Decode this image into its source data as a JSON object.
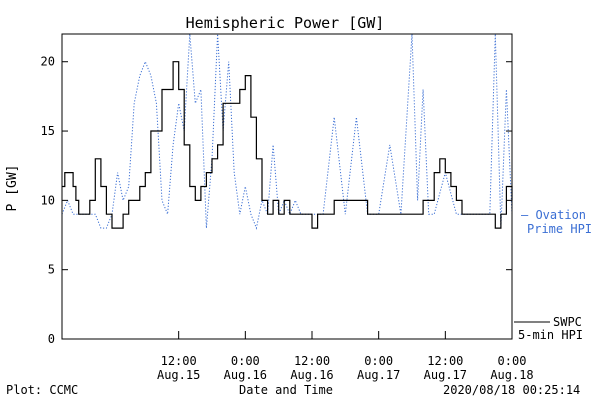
{
  "chart_data": {
    "type": "line",
    "title": "Hemispheric Power [GW]",
    "ylabel": "P [GW]",
    "xlabel": "Date and Time",
    "ylim": [
      0,
      22
    ],
    "x_start": "2020-08-14 15:00",
    "x_end": "2020-08-18 00:00",
    "yticks": [
      0,
      5,
      10,
      15,
      20
    ],
    "xticks": [
      {
        "t": "2020-08-15 12:00",
        "time": "12:00",
        "date": "Aug.15"
      },
      {
        "t": "2020-08-16 00:00",
        "time": "0:00",
        "date": "Aug.16"
      },
      {
        "t": "2020-08-16 12:00",
        "time": "12:00",
        "date": "Aug.16"
      },
      {
        "t": "2020-08-17 00:00",
        "time": "0:00",
        "date": "Aug.17"
      },
      {
        "t": "2020-08-17 12:00",
        "time": "12:00",
        "date": "Aug.17"
      },
      {
        "t": "2020-08-18 00:00",
        "time": "0:00",
        "date": "Aug.18"
      }
    ],
    "grid": false,
    "legend_placement": "right",
    "series": [
      {
        "name": "SWPC 5-min HPI",
        "color": "#000000",
        "style": "solid",
        "x": [
          "2020-08-14 15:00",
          "2020-08-14 15:30",
          "2020-08-14 17:00",
          "2020-08-14 17:30",
          "2020-08-14 18:00",
          "2020-08-14 19:00",
          "2020-08-14 20:00",
          "2020-08-14 21:00",
          "2020-08-14 22:00",
          "2020-08-14 23:00",
          "2020-08-15 00:00",
          "2020-08-15 01:00",
          "2020-08-15 02:00",
          "2020-08-15 03:00",
          "2020-08-15 04:00",
          "2020-08-15 05:00",
          "2020-08-15 06:00",
          "2020-08-15 07:00",
          "2020-08-15 09:00",
          "2020-08-15 11:00",
          "2020-08-15 12:00",
          "2020-08-15 13:00",
          "2020-08-15 14:00",
          "2020-08-15 15:00",
          "2020-08-15 16:00",
          "2020-08-15 17:00",
          "2020-08-15 18:00",
          "2020-08-15 19:00",
          "2020-08-15 20:00",
          "2020-08-15 21:00",
          "2020-08-15 22:00",
          "2020-08-15 23:00",
          "2020-08-16 00:00",
          "2020-08-16 01:00",
          "2020-08-16 02:00",
          "2020-08-16 03:00",
          "2020-08-16 04:00",
          "2020-08-16 05:00",
          "2020-08-16 06:00",
          "2020-08-16 07:00",
          "2020-08-16 08:00",
          "2020-08-16 09:00",
          "2020-08-16 10:00",
          "2020-08-16 11:00",
          "2020-08-16 12:00",
          "2020-08-16 13:00",
          "2020-08-16 14:00",
          "2020-08-16 16:00",
          "2020-08-16 18:00",
          "2020-08-16 20:00",
          "2020-08-16 22:00",
          "2020-08-17 00:00",
          "2020-08-17 02:00",
          "2020-08-17 04:00",
          "2020-08-17 06:00",
          "2020-08-17 08:00",
          "2020-08-17 10:00",
          "2020-08-17 11:00",
          "2020-08-17 12:00",
          "2020-08-17 13:00",
          "2020-08-17 14:00",
          "2020-08-17 15:00",
          "2020-08-17 16:00",
          "2020-08-17 18:00",
          "2020-08-17 20:00",
          "2020-08-17 21:00",
          "2020-08-17 22:00",
          "2020-08-17 23:00",
          "2020-08-18 00:00"
        ],
        "values": [
          11,
          12,
          11,
          10,
          9,
          9,
          10,
          13,
          11,
          9,
          8,
          8,
          9,
          10,
          10,
          11,
          12,
          15,
          18,
          20,
          18,
          14,
          11,
          10,
          11,
          12,
          13,
          14,
          17,
          17,
          17,
          18,
          19,
          16,
          13,
          10,
          9,
          10,
          9,
          10,
          9,
          9,
          9,
          9,
          8,
          9,
          9,
          10,
          10,
          10,
          9,
          9,
          9,
          9,
          9,
          10,
          12,
          13,
          12,
          11,
          10,
          9,
          9,
          9,
          9,
          8,
          9,
          11,
          10
        ]
      },
      {
        "name": "Ovation Prime HPI",
        "color": "#3b6fd4",
        "style": "dotted",
        "x": [
          "2020-08-14 15:00",
          "2020-08-14 16:00",
          "2020-08-14 17:00",
          "2020-08-14 18:00",
          "2020-08-14 19:00",
          "2020-08-14 20:00",
          "2020-08-14 21:00",
          "2020-08-14 22:00",
          "2020-08-14 23:00",
          "2020-08-15 00:00",
          "2020-08-15 01:00",
          "2020-08-15 02:00",
          "2020-08-15 03:00",
          "2020-08-15 04:00",
          "2020-08-15 05:00",
          "2020-08-15 06:00",
          "2020-08-15 07:00",
          "2020-08-15 08:00",
          "2020-08-15 09:00",
          "2020-08-15 10:00",
          "2020-08-15 11:00",
          "2020-08-15 12:00",
          "2020-08-15 13:00",
          "2020-08-15 14:00",
          "2020-08-15 15:00",
          "2020-08-15 16:00",
          "2020-08-15 17:00",
          "2020-08-15 18:00",
          "2020-08-15 19:00",
          "2020-08-15 20:00",
          "2020-08-15 21:00",
          "2020-08-15 22:00",
          "2020-08-15 23:00",
          "2020-08-16 00:00",
          "2020-08-16 01:00",
          "2020-08-16 02:00",
          "2020-08-16 03:00",
          "2020-08-16 04:00",
          "2020-08-16 05:00",
          "2020-08-16 06:00",
          "2020-08-16 07:00",
          "2020-08-16 08:00",
          "2020-08-16 09:00",
          "2020-08-16 10:00",
          "2020-08-16 11:00",
          "2020-08-16 12:00",
          "2020-08-16 14:00",
          "2020-08-16 16:00",
          "2020-08-16 18:00",
          "2020-08-16 20:00",
          "2020-08-16 22:00",
          "2020-08-17 00:00",
          "2020-08-17 02:00",
          "2020-08-17 04:00",
          "2020-08-17 06:00",
          "2020-08-17 07:00",
          "2020-08-17 08:00",
          "2020-08-17 09:00",
          "2020-08-17 10:00",
          "2020-08-17 12:00",
          "2020-08-17 14:00",
          "2020-08-17 16:00",
          "2020-08-17 18:00",
          "2020-08-17 19:00",
          "2020-08-17 20:00",
          "2020-08-17 21:00",
          "2020-08-17 22:00",
          "2020-08-17 23:00",
          "2020-08-18 00:00"
        ],
        "values": [
          9,
          10,
          9,
          9,
          9,
          9,
          9,
          8,
          8,
          9,
          12,
          10,
          11,
          17,
          19,
          20,
          19,
          17,
          10,
          9,
          14,
          17,
          15,
          22,
          17,
          18,
          8,
          13,
          22,
          15,
          20,
          12,
          9,
          11,
          9,
          8,
          10,
          9,
          14,
          9,
          10,
          9,
          10,
          9,
          9,
          9,
          9,
          16,
          9,
          16,
          9,
          9,
          14,
          9,
          22,
          10,
          18,
          9,
          9,
          12,
          9,
          9,
          9,
          9,
          9,
          22,
          8,
          18,
          9
        ]
      }
    ]
  },
  "legend": {
    "ovation_line1": "— Ovation",
    "ovation_line2": "Prime HPI",
    "swpc_line1": "SWPC",
    "swpc_line2": "5-min HPI"
  },
  "footer": {
    "plot_credit": "Plot: CCMC",
    "timestamp": "2020/08/18 00:25:14"
  }
}
